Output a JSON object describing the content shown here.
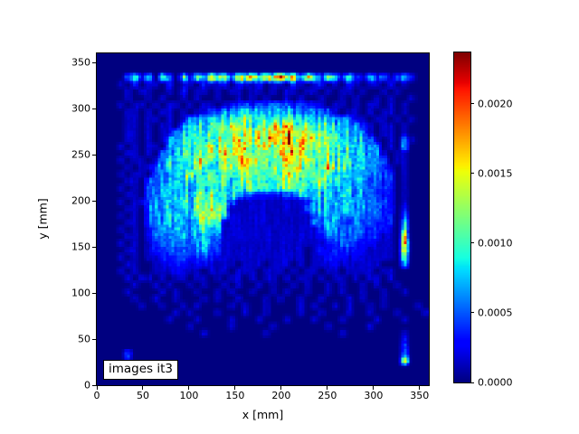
{
  "figure": {
    "background": "#ffffff",
    "plot_background": "#00007f"
  },
  "axes": {
    "xlabel": "x [mm]",
    "ylabel": "y [mm]",
    "x_ticks": [
      0,
      50,
      100,
      150,
      200,
      250,
      300,
      350
    ],
    "x_tick_labels": [
      "0",
      "50",
      "100",
      "150",
      "200",
      "250",
      "300",
      "350"
    ],
    "y_ticks": [
      0,
      50,
      100,
      150,
      200,
      250,
      300,
      350
    ],
    "y_tick_labels": [
      "0",
      "50",
      "100",
      "150",
      "200",
      "250",
      "300",
      "350"
    ],
    "x_range": [
      0,
      360
    ],
    "y_range": [
      0,
      360
    ]
  },
  "annotation": {
    "text": "images it3"
  },
  "colorbar": {
    "vmin": 0.0,
    "vmax": 0.00237,
    "tick_values": [
      0.0,
      0.0005,
      0.001,
      0.0015,
      0.002
    ],
    "tick_labels": [
      "0.0000",
      "0.0005",
      "0.0010",
      "0.0015",
      "0.0020"
    ],
    "colormap": "jet"
  },
  "chart_data": {
    "type": "heatmap",
    "title": "",
    "xlabel": "x [mm]",
    "ylabel": "y [mm]",
    "annotation": "images it3",
    "colormap": "jet",
    "x_range_mm": [
      0,
      360
    ],
    "y_range_mm": [
      0,
      360
    ],
    "value_min": 0.0,
    "value_max": 0.00237,
    "legend_position": "colorbar-right",
    "grid_on": false,
    "grid_encoding": "hex digits 0-15 (0-f); value = digit/15 * value_max; 48 columns x 48 rows; rows listed top (y=360mm) to bottom (y=0mm)",
    "noise_seed": 11,
    "grid": [
      "000000000000000000000000000000000000000000000000",
      "000000000000000000000000000000000000000000000000",
      "000000000000000000000000000000000000000000000000",
      "0000362507306284c693a7c5b8d6a497385263152413 6200",
      "000102011020110211202112011021012010210110201000",
      "000010110010201101011011010110110101101001010000",
      "000010010100101001001010100101001001010010100100",
      "000101101011010110122323343323221011010110101000",
      "000011010110101133444554544544343310110101101000",
      "000011011010144555666776676666554544411011010100",
      "0000110101104556678997687c8a877666554421011010 00",
      "00001101011455667789798a89d9b98776655441011010 00",
      "00001101014566767889a8998c9e9a887766554410104100",
      "000101011045567787898989c8998a987766655440105000",
      "000011010445667678aa879889b8988778665554410110 00",
      "0001011014556689878789a8878988a877676554440 11000",
      "000010113455668767877878788798787a766554431010 00",
      "000101103445696676776787697877676656554433201000",
      "000011033455656766756767668676568565454332201000",
      "000101034455545656656667767776656554544333201000",
      "000011034545556776654322222334555545444332201000",
      "000101134455657887541111111111245454454333201000",
      "000011034554557999611111111111345445444332202000",
      "000101034455557888611111111111135454444332203000",
      "000011034454545676111111111111144544343322205000",
      "000101023445455655111111111111113443433222106000",
      "000011023344545544111111111111112343332221109000",
      "00010101233444454311111111111111123332221110d000",
      "00001101223343443311111111111101223222211110c000",
      "000101011223323322111111111111011222121111107000",
      "000011001122212211110111011101011121111110004000",
      "000101001112111011101110111010110110111101100000",
      "000010110101101101011010110101101011010110100000",
      "000001001010010100101001010010100101001010010000",
      "000010000101001001010010010100100101001001001000",
      "000001001001000101001000101001001000101001000000",
      "000000100100101000010100100001010010100101000010",
      "000000000001010001000100100001001000100100010001",
      "000000000010001000010001000100010001000010001000",
      "000000000000010000010000010000000100000100000000",
      "000000000000000100000000100000000001000000001000",
      "000000000000000000000000000000000000000000002000",
      "000000000000000000000000000000000000000000003000",
      "000030000000000000000000000000000000000000004000",
      "00002000000000000000000000000000000000000000a000",
      "000000000000000000000000000000000000000000000000",
      "000000000000000000000000000000000000000000000000",
      "000000000000000000000000000000000000000000000000"
    ]
  }
}
